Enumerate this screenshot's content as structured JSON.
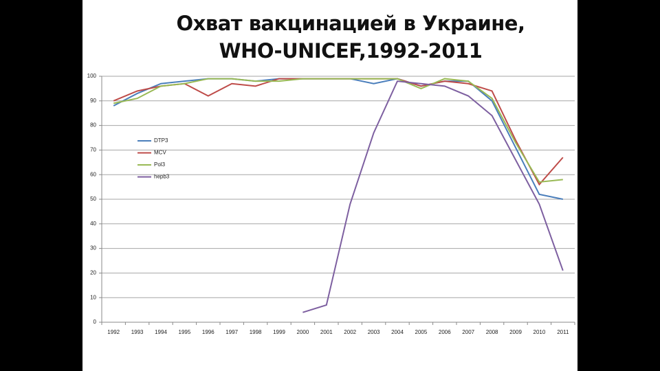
{
  "chart_data": {
    "type": "line",
    "title": "Охват вакцинацией в Украине, WHO-UNICEF,1992-2011",
    "categories": [
      "1992",
      "1993",
      "1994",
      "1995",
      "1996",
      "1997",
      "1998",
      "1999",
      "2000",
      "2001",
      "2002",
      "2003",
      "2004",
      "2005",
      "2006",
      "2007",
      "2008",
      "2009",
      "2010",
      "2011"
    ],
    "series": [
      {
        "name": "DTP3",
        "color": "#4a7ebb",
        "values": [
          88,
          93,
          97,
          98,
          99,
          99,
          98,
          99,
          99,
          99,
          99,
          97,
          99,
          96,
          98,
          98,
          90,
          71,
          52,
          50
        ]
      },
      {
        "name": "MCV",
        "color": "#be4b48",
        "values": [
          90,
          94,
          96,
          97,
          92,
          97,
          96,
          99,
          99,
          99,
          99,
          99,
          99,
          96,
          98,
          97,
          94,
          74,
          56,
          67
        ]
      },
      {
        "name": "Pol3",
        "color": "#98b954",
        "values": [
          89,
          91,
          96,
          97,
          99,
          99,
          98,
          98,
          99,
          99,
          99,
          99,
          99,
          95,
          99,
          98,
          91,
          73,
          57,
          58
        ]
      },
      {
        "name": "hepb3",
        "color": "#7d5fa0",
        "values": [
          null,
          null,
          null,
          null,
          null,
          null,
          null,
          null,
          4,
          7,
          48,
          77,
          98,
          97,
          96,
          92,
          84,
          66,
          48,
          21
        ]
      }
    ],
    "ylim": [
      0,
      100
    ],
    "yticks": [
      0,
      10,
      20,
      30,
      40,
      50,
      60,
      70,
      80,
      90,
      100
    ],
    "grid": true
  }
}
